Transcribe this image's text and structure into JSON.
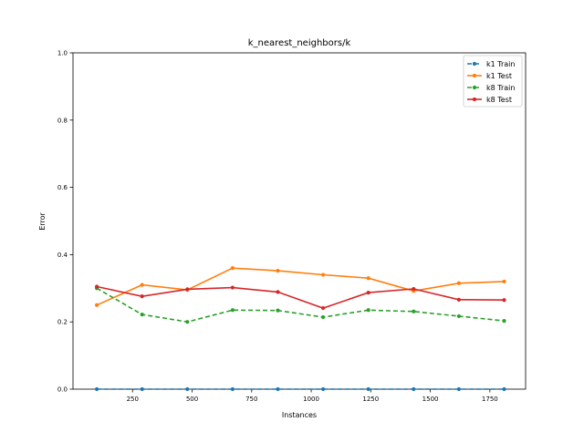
{
  "chart_data": {
    "type": "line",
    "title": "k_nearest_neighbors/k",
    "xlabel": "Instances",
    "ylabel": "Error",
    "xlim": [
      0,
      1900
    ],
    "ylim": [
      0,
      1.0
    ],
    "xticks": [
      250,
      500,
      750,
      1000,
      1250,
      1500,
      1750
    ],
    "yticks": [
      0.0,
      0.2,
      0.4,
      0.6,
      0.8,
      1.0
    ],
    "xtick_labels": [
      "250",
      "500",
      "750",
      "1000",
      "1250",
      "1500",
      "1750"
    ],
    "ytick_labels": [
      "0.0",
      "0.2",
      "0.4",
      "0.6",
      "0.8",
      "1.0"
    ],
    "grid": false,
    "legend_position": "top-right",
    "x": [
      100,
      290,
      480,
      670,
      860,
      1050,
      1240,
      1430,
      1620,
      1810
    ],
    "series": [
      {
        "name": "k1 Train",
        "color": "#1f77b4",
        "dashed": true,
        "values": [
          0.0,
          0.0,
          0.0,
          0.0,
          0.0,
          0.0,
          0.0,
          0.0,
          0.0,
          0.0
        ]
      },
      {
        "name": "k1 Test",
        "color": "#ff7f0e",
        "dashed": false,
        "values": [
          0.25,
          0.31,
          0.295,
          0.36,
          0.352,
          0.34,
          0.33,
          0.292,
          0.315,
          0.32
        ]
      },
      {
        "name": "k8 Train",
        "color": "#2ca02c",
        "dashed": true,
        "values": [
          0.3,
          0.222,
          0.2,
          0.235,
          0.234,
          0.214,
          0.235,
          0.231,
          0.217,
          0.203
        ]
      },
      {
        "name": "k8 Test",
        "color": "#d62728",
        "dashed": false,
        "values": [
          0.305,
          0.276,
          0.297,
          0.302,
          0.289,
          0.241,
          0.287,
          0.298,
          0.266,
          0.265
        ]
      }
    ]
  }
}
